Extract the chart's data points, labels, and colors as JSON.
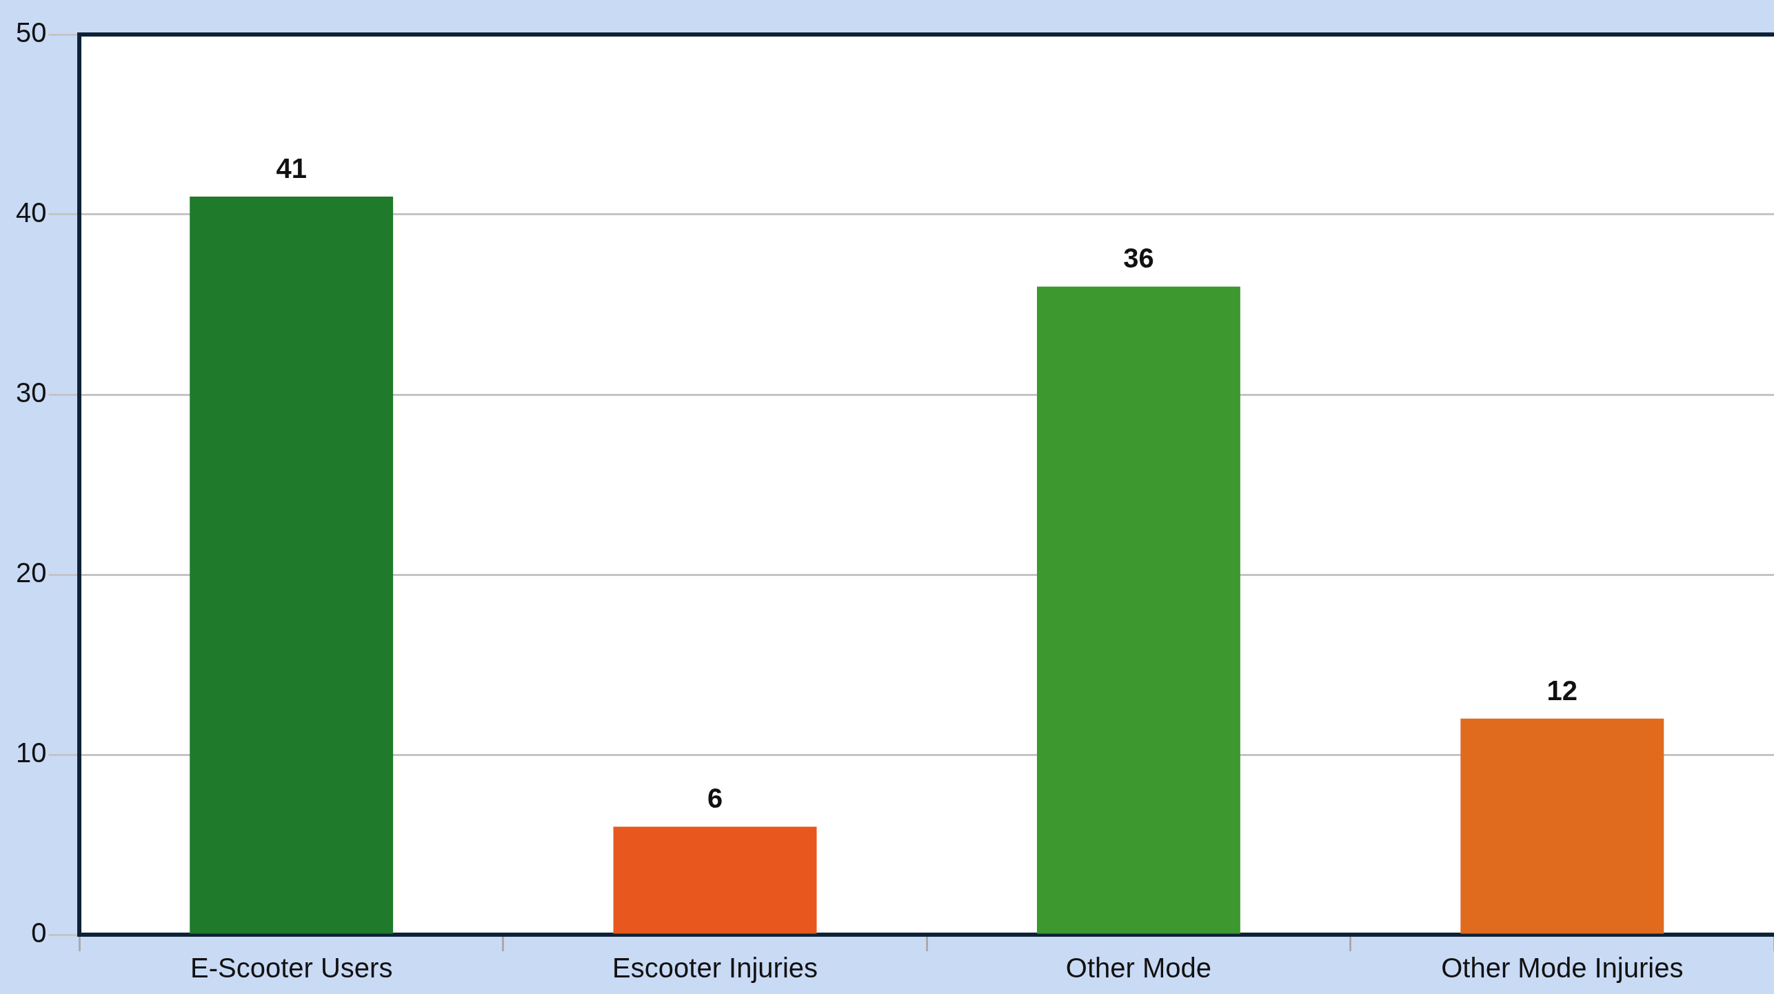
{
  "chart_data": {
    "type": "bar",
    "categories": [
      "E-Scooter Users",
      "Escooter Injuries",
      "Other Mode",
      "Other Mode Injuries"
    ],
    "values": [
      41,
      6,
      36,
      12
    ],
    "colors": [
      "#1f7a2b",
      "#e8571e",
      "#3c982f",
      "#e06a1e"
    ],
    "ylim": [
      0,
      50
    ],
    "yticks": [
      0,
      10,
      20,
      30,
      40,
      50
    ],
    "grid": "y",
    "data_labels": true,
    "legend": false
  }
}
